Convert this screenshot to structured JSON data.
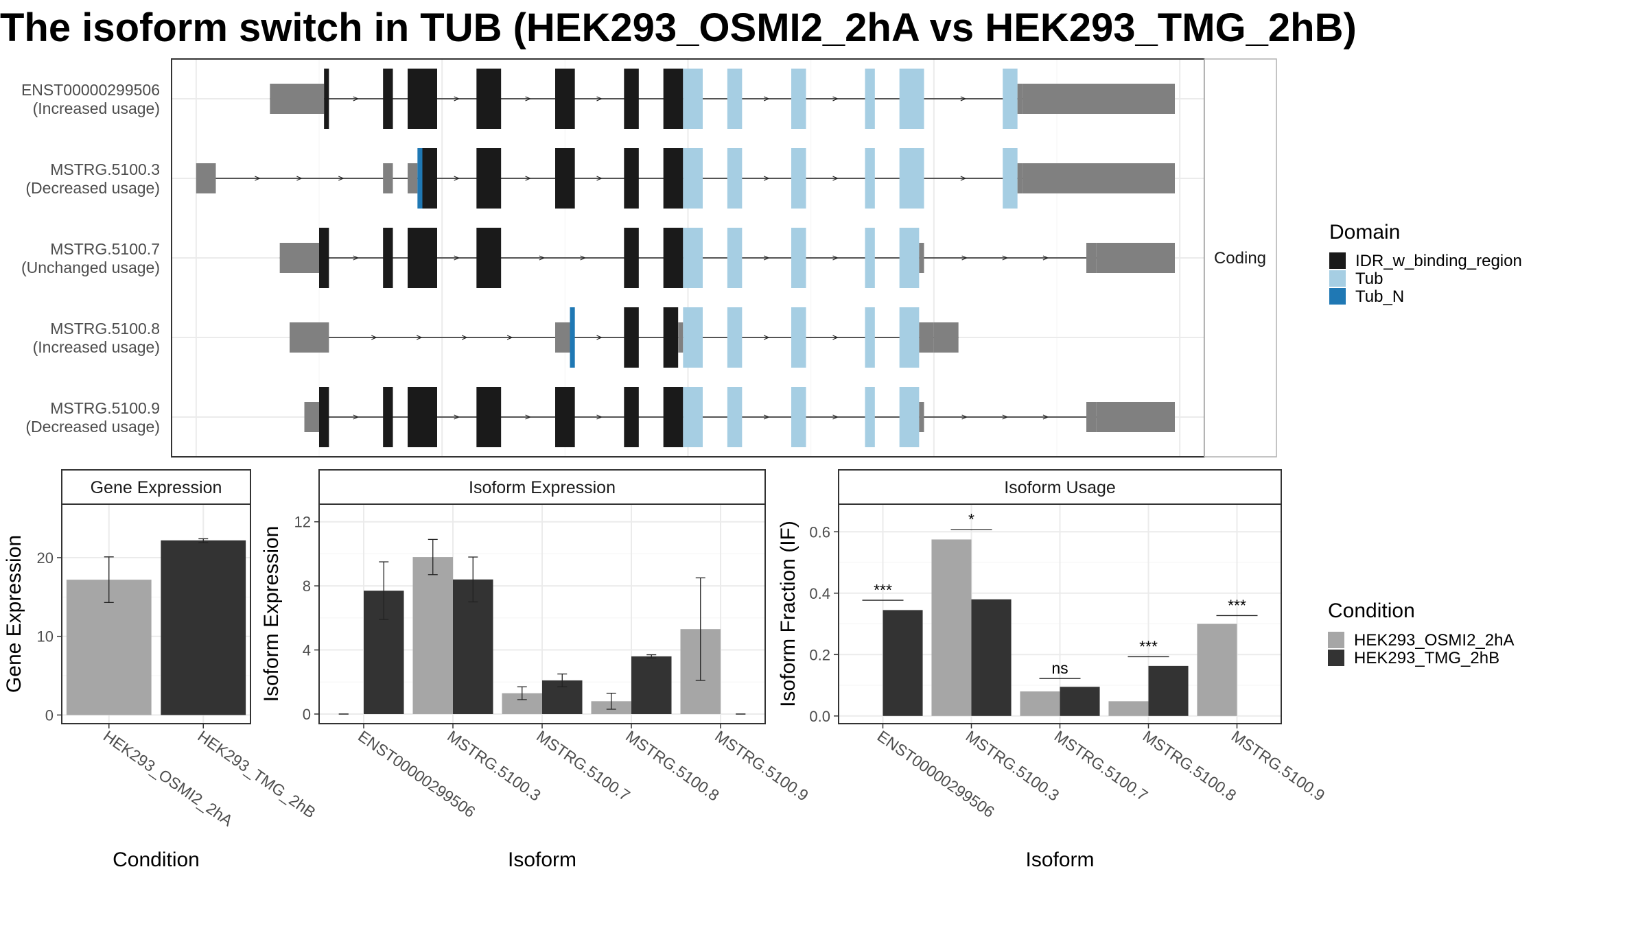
{
  "title": "The isoform switch in TUB (HEK293_OSMI2_2hA vs HEK293_TMG_2hB)",
  "colors": {
    "utr": "#808080",
    "IDR_w_binding_region": "#1a1a1a",
    "Tub": "#a6cee3",
    "Tub_N": "#1f78b4",
    "cond_a": "#a6a6a6",
    "cond_b": "#333333",
    "panel_border": "#333333",
    "grid": "#ebebeb"
  },
  "chart_data": [
    {
      "type": "gene-structure",
      "strip_label": "Coding",
      "legend": {
        "title": "Domain",
        "items": [
          {
            "name": "IDR_w_binding_region",
            "color": "#1a1a1a"
          },
          {
            "name": "Tub",
            "color": "#a6cee3"
          },
          {
            "name": "Tub_N",
            "color": "#1f78b4"
          }
        ]
      },
      "transcripts": [
        {
          "id": "ENST00000299506",
          "usage": "(Increased usage)",
          "segments": [
            [
              0.15,
              0.26,
              "utr"
            ],
            [
              0.26,
              0.27,
              "IDR_w_binding_region"
            ],
            [
              0.38,
              0.4,
              "IDR_w_binding_region"
            ],
            [
              0.43,
              0.49,
              "IDR_w_binding_region"
            ],
            [
              0.57,
              0.62,
              "IDR_w_binding_region"
            ],
            [
              0.73,
              0.77,
              "IDR_w_binding_region"
            ],
            [
              0.87,
              0.9,
              "IDR_w_binding_region"
            ],
            [
              0.95,
              0.99,
              "IDR_w_binding_region"
            ],
            [
              0.99,
              1.03,
              "Tub"
            ],
            [
              1.08,
              1.11,
              "Tub"
            ],
            [
              1.21,
              1.24,
              "Tub"
            ],
            [
              1.36,
              1.38,
              "Tub"
            ],
            [
              1.43,
              1.48,
              "Tub"
            ],
            [
              1.64,
              1.67,
              "Tub"
            ],
            [
              1.67,
              1.68,
              "utr"
            ],
            [
              1.68,
              1.99,
              "utr"
            ]
          ]
        },
        {
          "id": "MSTRG.5100.3",
          "usage": "(Decreased usage)",
          "segments": [
            [
              0.0,
              0.04,
              "utr"
            ],
            [
              0.38,
              0.4,
              "utr"
            ],
            [
              0.43,
              0.45,
              "utr"
            ],
            [
              0.45,
              0.46,
              "Tub_N"
            ],
            [
              0.46,
              0.49,
              "IDR_w_binding_region"
            ],
            [
              0.57,
              0.62,
              "IDR_w_binding_region"
            ],
            [
              0.73,
              0.77,
              "IDR_w_binding_region"
            ],
            [
              0.87,
              0.9,
              "IDR_w_binding_region"
            ],
            [
              0.95,
              0.99,
              "IDR_w_binding_region"
            ],
            [
              0.99,
              1.03,
              "Tub"
            ],
            [
              1.08,
              1.11,
              "Tub"
            ],
            [
              1.21,
              1.24,
              "Tub"
            ],
            [
              1.36,
              1.38,
              "Tub"
            ],
            [
              1.43,
              1.48,
              "Tub"
            ],
            [
              1.64,
              1.67,
              "Tub"
            ],
            [
              1.67,
              1.68,
              "utr"
            ],
            [
              1.68,
              1.99,
              "utr"
            ]
          ]
        },
        {
          "id": "MSTRG.5100.7",
          "usage": "(Unchanged usage)",
          "segments": [
            [
              0.17,
              0.25,
              "utr"
            ],
            [
              0.25,
              0.27,
              "IDR_w_binding_region"
            ],
            [
              0.38,
              0.4,
              "IDR_w_binding_region"
            ],
            [
              0.43,
              0.49,
              "IDR_w_binding_region"
            ],
            [
              0.57,
              0.62,
              "IDR_w_binding_region"
            ],
            [
              0.87,
              0.9,
              "IDR_w_binding_region"
            ],
            [
              0.95,
              0.99,
              "IDR_w_binding_region"
            ],
            [
              0.99,
              1.03,
              "Tub"
            ],
            [
              1.08,
              1.11,
              "Tub"
            ],
            [
              1.21,
              1.24,
              "Tub"
            ],
            [
              1.36,
              1.38,
              "Tub"
            ],
            [
              1.43,
              1.47,
              "Tub"
            ],
            [
              1.47,
              1.48,
              "utr"
            ],
            [
              1.81,
              1.83,
              "utr"
            ],
            [
              1.83,
              1.99,
              "utr"
            ]
          ]
        },
        {
          "id": "MSTRG.5100.8",
          "usage": "(Increased usage)",
          "segments": [
            [
              0.19,
              0.27,
              "utr"
            ],
            [
              0.73,
              0.76,
              "utr"
            ],
            [
              0.76,
              0.77,
              "Tub_N"
            ],
            [
              0.87,
              0.9,
              "IDR_w_binding_region"
            ],
            [
              0.95,
              0.98,
              "IDR_w_binding_region"
            ],
            [
              0.98,
              0.99,
              "utr"
            ],
            [
              0.99,
              1.03,
              "Tub"
            ],
            [
              1.08,
              1.11,
              "Tub"
            ],
            [
              1.21,
              1.24,
              "Tub"
            ],
            [
              1.36,
              1.38,
              "Tub"
            ],
            [
              1.43,
              1.47,
              "Tub"
            ],
            [
              1.47,
              1.5,
              "utr"
            ],
            [
              1.5,
              1.55,
              "utr"
            ]
          ]
        },
        {
          "id": "MSTRG.5100.9",
          "usage": "(Decreased usage)",
          "segments": [
            [
              0.22,
              0.25,
              "utr"
            ],
            [
              0.25,
              0.27,
              "IDR_w_binding_region"
            ],
            [
              0.38,
              0.4,
              "IDR_w_binding_region"
            ],
            [
              0.43,
              0.49,
              "IDR_w_binding_region"
            ],
            [
              0.57,
              0.62,
              "IDR_w_binding_region"
            ],
            [
              0.73,
              0.77,
              "IDR_w_binding_region"
            ],
            [
              0.87,
              0.9,
              "IDR_w_binding_region"
            ],
            [
              0.95,
              0.99,
              "IDR_w_binding_region"
            ],
            [
              0.99,
              1.03,
              "Tub"
            ],
            [
              1.08,
              1.11,
              "Tub"
            ],
            [
              1.21,
              1.24,
              "Tub"
            ],
            [
              1.36,
              1.38,
              "Tub"
            ],
            [
              1.43,
              1.47,
              "Tub"
            ],
            [
              1.47,
              1.48,
              "utr"
            ],
            [
              1.81,
              1.83,
              "utr"
            ],
            [
              1.83,
              1.99,
              "utr"
            ]
          ]
        }
      ]
    },
    {
      "type": "bar",
      "panel_title": "Gene Expression",
      "xlabel": "Condition",
      "ylabel": "Gene Expression",
      "categories": [
        "HEK293_OSMI2_2hA",
        "HEK293_TMG_2hB"
      ],
      "values": [
        17.2,
        22.2
      ],
      "error": [
        [
          14.3,
          20.1
        ],
        [
          21.9,
          22.4
        ]
      ],
      "ylim": [
        -1.1,
        26.8
      ],
      "yticks": [
        0,
        10,
        20
      ]
    },
    {
      "type": "bar",
      "panel_title": "Isoform Expression",
      "xlabel": "Isoform",
      "ylabel": "Isoform Expression",
      "categories": [
        "ENST00000299506",
        "MSTRG.5100.3",
        "MSTRG.5100.7",
        "MSTRG.5100.8",
        "MSTRG.5100.9"
      ],
      "series": [
        {
          "name": "HEK293_OSMI2_2hA",
          "values": [
            0,
            9.8,
            1.3,
            0.8,
            5.3
          ],
          "error": [
            [
              0,
              0
            ],
            [
              8.7,
              10.9
            ],
            [
              0.9,
              1.7
            ],
            [
              0.3,
              1.3
            ],
            [
              2.1,
              8.5
            ]
          ]
        },
        {
          "name": "HEK293_TMG_2hB",
          "values": [
            7.7,
            8.4,
            2.1,
            3.6,
            0
          ],
          "error": [
            [
              5.9,
              9.5
            ],
            [
              7.0,
              9.8
            ],
            [
              1.7,
              2.5
            ],
            [
              3.5,
              3.7
            ],
            [
              0,
              0
            ]
          ]
        }
      ],
      "ylim": [
        -0.6,
        13.1
      ],
      "yticks": [
        0,
        4,
        8,
        12
      ]
    },
    {
      "type": "bar",
      "panel_title": "Isoform Usage",
      "xlabel": "Isoform",
      "ylabel": "Isoform Fraction (IF)",
      "categories": [
        "ENST00000299506",
        "MSTRG.5100.3",
        "MSTRG.5100.7",
        "MSTRG.5100.8",
        "MSTRG.5100.9"
      ],
      "series": [
        {
          "name": "HEK293_OSMI2_2hA",
          "values": [
            0,
            0.575,
            0.08,
            0.048,
            0.3
          ]
        },
        {
          "name": "HEK293_TMG_2hB",
          "values": [
            0.345,
            0.38,
            0.095,
            0.163,
            0
          ]
        }
      ],
      "significance": [
        {
          "label": "***",
          "y": 0.377
        },
        {
          "label": "*",
          "y": 0.607
        },
        {
          "label": "ns",
          "y": 0.122
        },
        {
          "label": "***",
          "y": 0.193
        },
        {
          "label": "***",
          "y": 0.327
        }
      ],
      "ylim": [
        -0.025,
        0.69
      ],
      "yticks": [
        0.0,
        0.2,
        0.4,
        0.6
      ],
      "ytick_labels": [
        "0.0",
        "0.2",
        "0.4",
        "0.6"
      ],
      "legend": {
        "title": "Condition",
        "items": [
          {
            "name": "HEK293_OSMI2_2hA",
            "color": "#a6a6a6"
          },
          {
            "name": "HEK293_TMG_2hB",
            "color": "#333333"
          }
        ]
      }
    }
  ]
}
